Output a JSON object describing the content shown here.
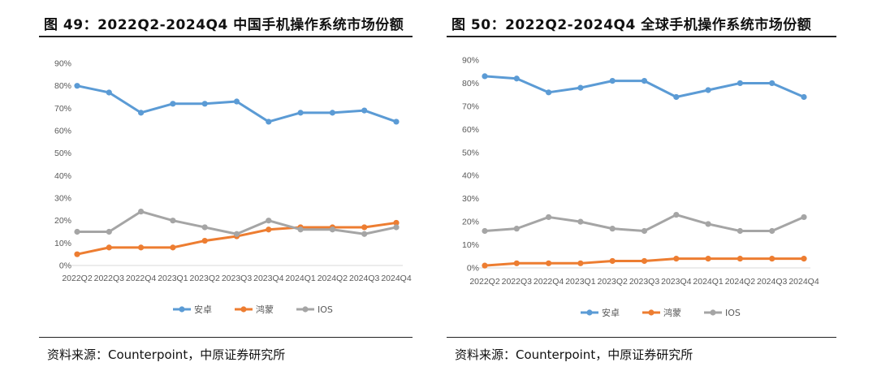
{
  "charts": [
    {
      "title": "图 49：2022Q2-2024Q4  中国手机操作系统市场份额",
      "source": "资料来源：Counterpoint，中原证券研究所"
    },
    {
      "title": "图 50：2022Q2-2024Q4  全球手机操作系统市场份额",
      "source": "资料来源：Counterpoint，中原证券研究所"
    }
  ],
  "colors": {
    "android": "#5B9BD5",
    "harmony": "#ED7D31",
    "ios": "#A5A5A5"
  },
  "chart_data": [
    {
      "type": "line",
      "title": "图 49：2022Q2-2024Q4  中国手机操作系统市场份额",
      "categories": [
        "2022Q2",
        "2022Q3",
        "2022Q4",
        "2023Q1",
        "2023Q2",
        "2023Q3",
        "2023Q4",
        "2024Q1",
        "2024Q2",
        "2024Q3",
        "2024Q4"
      ],
      "y_ticks": [
        "0%",
        "10%",
        "20%",
        "30%",
        "40%",
        "50%",
        "60%",
        "70%",
        "80%",
        "90%"
      ],
      "ylim": [
        0,
        90
      ],
      "grid": false,
      "legend_position": "bottom",
      "series": [
        {
          "name": "安卓",
          "color": "#5B9BD5",
          "values": [
            80,
            77,
            68,
            72,
            72,
            73,
            64,
            68,
            68,
            69,
            64
          ]
        },
        {
          "name": "鸿蒙",
          "color": "#ED7D31",
          "values": [
            5,
            8,
            8,
            8,
            11,
            13,
            16,
            17,
            17,
            17,
            19
          ]
        },
        {
          "name": "IOS",
          "color": "#A5A5A5",
          "values": [
            15,
            15,
            24,
            20,
            17,
            14,
            20,
            16,
            16,
            14,
            17
          ]
        }
      ]
    },
    {
      "type": "line",
      "title": "图 50：2022Q2-2024Q4  全球手机操作系统市场份额",
      "categories": [
        "2022Q2",
        "2022Q3",
        "2022Q4",
        "2023Q1",
        "2023Q2",
        "2023Q3",
        "2023Q4",
        "2024Q1",
        "2024Q2",
        "2024Q3",
        "2024Q4"
      ],
      "y_ticks": [
        "0%",
        "10%",
        "20%",
        "30%",
        "40%",
        "50%",
        "60%",
        "70%",
        "80%",
        "90%"
      ],
      "ylim": [
        0,
        90
      ],
      "grid": false,
      "legend_position": "bottom",
      "series": [
        {
          "name": "安卓",
          "color": "#5B9BD5",
          "values": [
            83,
            82,
            76,
            78,
            81,
            81,
            74,
            77,
            80,
            80,
            74
          ]
        },
        {
          "name": "鸿蒙",
          "color": "#ED7D31",
          "values": [
            1,
            2,
            2,
            2,
            3,
            3,
            4,
            4,
            4,
            4,
            4
          ]
        },
        {
          "name": "IOS",
          "color": "#A5A5A5",
          "values": [
            16,
            17,
            22,
            20,
            17,
            16,
            23,
            19,
            16,
            16,
            22
          ]
        }
      ]
    }
  ]
}
